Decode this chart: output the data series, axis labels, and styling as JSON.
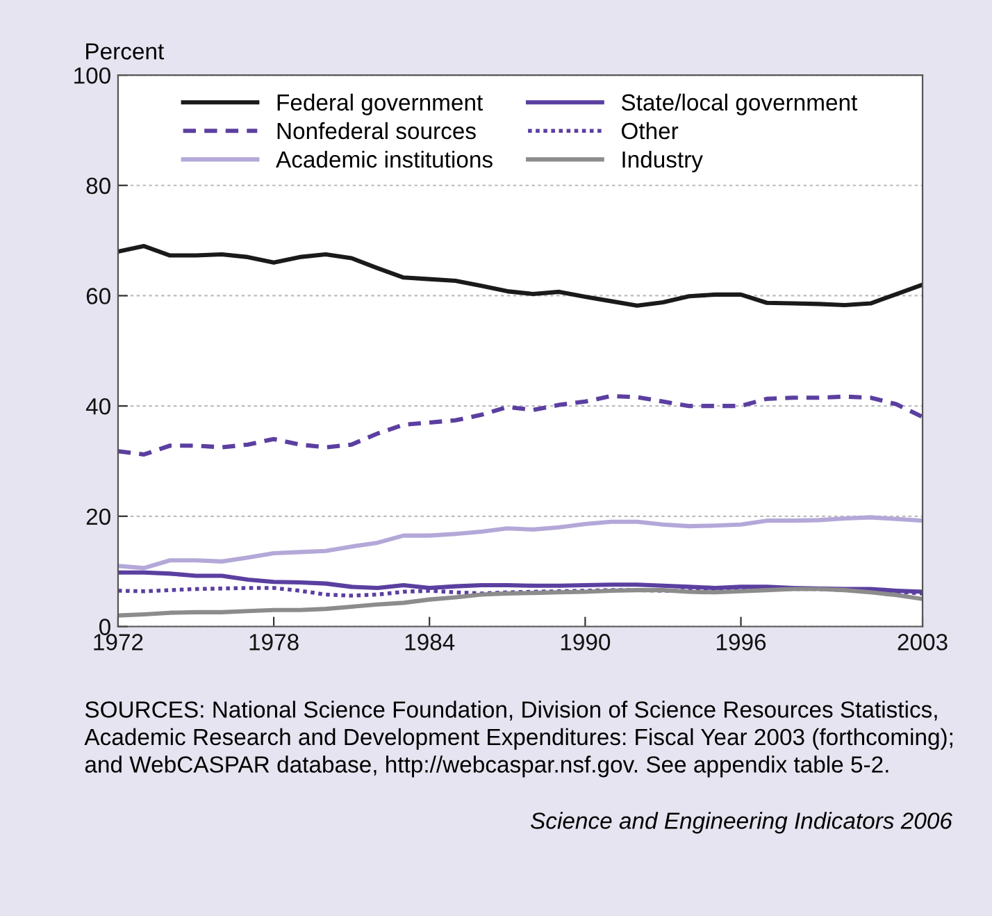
{
  "chart_data": {
    "type": "line",
    "ylabel": "Percent",
    "x": [
      1972,
      1973,
      1974,
      1975,
      1976,
      1977,
      1978,
      1979,
      1980,
      1981,
      1982,
      1983,
      1984,
      1985,
      1986,
      1987,
      1988,
      1989,
      1990,
      1991,
      1992,
      1993,
      1994,
      1995,
      1996,
      1997,
      1998,
      1999,
      2000,
      2001,
      2002,
      2003
    ],
    "series": [
      {
        "name": "Federal government",
        "color": "#1a1a1a",
        "line_style": "solid",
        "values": [
          68,
          69,
          67.3,
          67.3,
          67.5,
          67,
          66,
          67,
          67.5,
          66.8,
          65,
          63.3,
          63,
          62.7,
          61.8,
          60.8,
          60.3,
          60.7,
          59.8,
          59,
          58.2,
          58.8,
          59.9,
          60.2,
          60.2,
          58.7,
          58.6,
          58.5,
          58.3,
          58.6,
          60.3,
          62
        ]
      },
      {
        "name": "Nonfederal sources",
        "color": "#5b3fa0",
        "line_style": "dashed",
        "values": [
          31.8,
          31.2,
          32.8,
          32.8,
          32.5,
          33,
          34,
          33,
          32.5,
          33,
          35,
          36.6,
          37,
          37.4,
          38.4,
          39.8,
          39.3,
          40.2,
          40.8,
          41.8,
          41.6,
          40.8,
          40,
          40,
          40,
          41.3,
          41.5,
          41.5,
          41.7,
          41.5,
          40.3,
          38
        ]
      },
      {
        "name": "Academic institutions",
        "color": "#b3a8d8",
        "line_style": "solid",
        "values": [
          11,
          10.6,
          12,
          12,
          11.8,
          12.5,
          13.3,
          13.5,
          13.7,
          14.5,
          15.2,
          16.5,
          16.5,
          16.8,
          17.2,
          17.8,
          17.6,
          18,
          18.6,
          19,
          19,
          18.5,
          18.2,
          18.3,
          18.5,
          19.2,
          19.2,
          19.3,
          19.6,
          19.8,
          19.5,
          19.2
        ]
      },
      {
        "name": "State/local government",
        "color": "#5b3fa0",
        "line_style": "solid",
        "values": [
          9.8,
          9.8,
          9.6,
          9.2,
          9.2,
          8.5,
          8.1,
          8,
          7.8,
          7.2,
          7,
          7.5,
          7,
          7.3,
          7.5,
          7.5,
          7.4,
          7.4,
          7.5,
          7.6,
          7.6,
          7.4,
          7.2,
          7,
          7.2,
          7.2,
          7,
          6.9,
          6.8,
          6.8,
          6.5,
          6.3
        ]
      },
      {
        "name": "Other",
        "color": "#5b3fa0",
        "line_style": "dotted",
        "values": [
          6.5,
          6.4,
          6.6,
          6.8,
          6.9,
          7,
          7,
          6.5,
          5.8,
          5.6,
          5.8,
          6.3,
          6.5,
          6.2,
          6,
          6.2,
          6.3,
          6.4,
          6.5,
          6.6,
          6.6,
          6.5,
          6.5,
          6.5,
          6.6,
          6.8,
          6.8,
          6.8,
          6.6,
          6.5,
          6.3,
          6
        ]
      },
      {
        "name": "Industry",
        "color": "#8c8c8c",
        "line_style": "solid",
        "values": [
          2,
          2.2,
          2.5,
          2.6,
          2.6,
          2.8,
          3,
          3,
          3.2,
          3.6,
          4,
          4.3,
          4.9,
          5.3,
          5.8,
          6,
          6.1,
          6.2,
          6.3,
          6.5,
          6.6,
          6.6,
          6.3,
          6.2,
          6.4,
          6.6,
          6.8,
          6.8,
          6.6,
          6.2,
          5.7,
          5
        ]
      }
    ],
    "xlim": [
      1972,
      2003
    ],
    "ylim": [
      0,
      100
    ],
    "xticks": [
      1972,
      1978,
      1984,
      1990,
      1996,
      2003
    ],
    "yticks": [
      0,
      20,
      40,
      60,
      80,
      100
    ],
    "grid": "y",
    "legend": "top",
    "marker": "none",
    "annotations": [
      "SOURCES: National Science Foundation, Division of Science Resources Statistics, Academic Research and Development Expenditures: Fiscal Year 2003 (forthcoming); and WebCASPAR database, http://webcaspar.nsf.gov. See appendix table 5-2.",
      "Science and Engineering Indicators 2006"
    ]
  }
}
